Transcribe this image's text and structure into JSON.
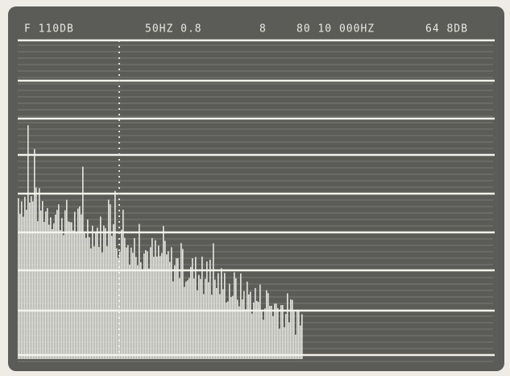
{
  "header": {
    "items": [
      "F 110DB",
      "50HZ 0.8",
      "8",
      "80 10 000HZ",
      "64 8DB"
    ]
  }
}
